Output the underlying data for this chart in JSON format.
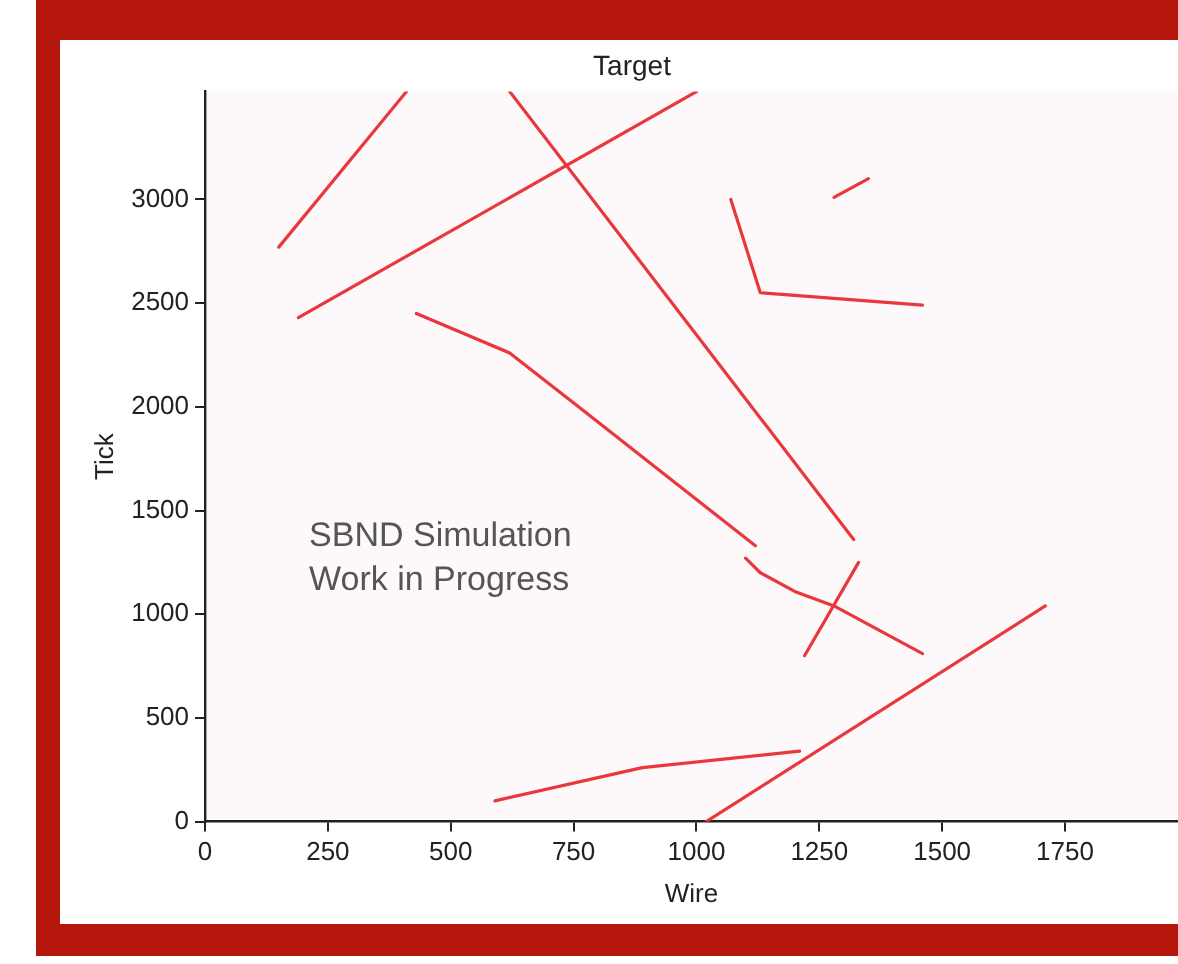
{
  "chart_data": {
    "type": "line",
    "title": "Target",
    "xlabel": "Wire",
    "ylabel": "Tick",
    "xlim": [
      0,
      1980
    ],
    "xticks": [
      0,
      250,
      500,
      750,
      1000,
      1250,
      1500,
      1750
    ],
    "ylim": [
      0,
      3520
    ],
    "yticks": [
      0,
      500,
      1000,
      1500,
      2000,
      2500,
      3000
    ],
    "grid": false,
    "legend": false,
    "marker": "none",
    "line_style": "solid",
    "annotations": [
      "SBND Simulation\nWork in Progress"
    ],
    "series": [
      {
        "color": "#e8383d",
        "x": [
          150,
          410
        ],
        "values": [
          2770,
          3520
        ]
      },
      {
        "color": "#e8383d",
        "x": [
          190,
          1000
        ],
        "values": [
          2430,
          3520
        ]
      },
      {
        "color": "#e8383d",
        "x": [
          620,
          1320
        ],
        "values": [
          3520,
          1360
        ]
      },
      {
        "color": "#e8383d",
        "x": [
          430,
          620,
          760,
          1120
        ],
        "values": [
          2450,
          2260,
          2000,
          1330
        ]
      },
      {
        "color": "#e8383d",
        "x": [
          1070,
          1130,
          1460
        ],
        "values": [
          3000,
          2550,
          2490
        ]
      },
      {
        "color": "#e8383d",
        "x": [
          1280,
          1350
        ],
        "values": [
          3010,
          3100
        ]
      },
      {
        "color": "#e8383d",
        "x": [
          1100,
          1130,
          1200,
          1280,
          1460
        ],
        "values": [
          1270,
          1200,
          1110,
          1040,
          810
        ]
      },
      {
        "color": "#e8383d",
        "x": [
          1220,
          1330
        ],
        "values": [
          800,
          1250
        ]
      },
      {
        "color": "#e8383d",
        "x": [
          1020,
          1710
        ],
        "values": [
          0,
          1040
        ]
      },
      {
        "color": "#e8383d",
        "x": [
          590,
          890,
          1210
        ],
        "values": [
          100,
          260,
          340
        ]
      }
    ]
  }
}
